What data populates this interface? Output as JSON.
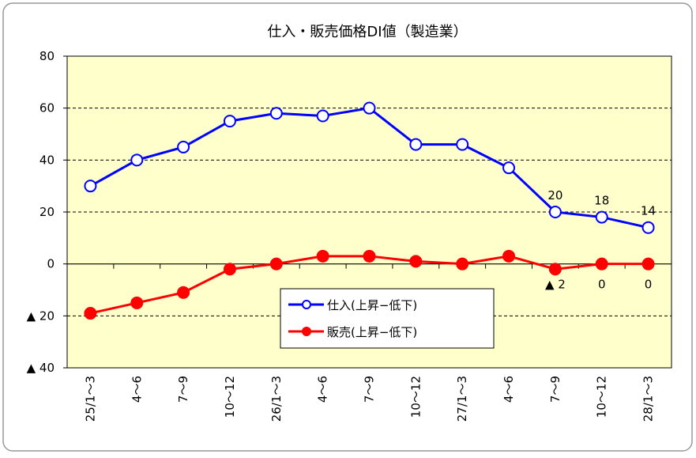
{
  "chart_data": {
    "type": "line",
    "title": "仕入・販売価格DI値（製造業）",
    "categories": [
      "25/1～3",
      "4～6",
      "7～9",
      "10～12",
      "26/1～3",
      "4～6",
      "7～9",
      "10～12",
      "27/1～3",
      "4～6",
      "7～9",
      "10～12",
      "28/1～3"
    ],
    "series": [
      {
        "name": "仕入(上昇−低下)",
        "color": "#0000ff",
        "marker": "open",
        "values": [
          30,
          40,
          45,
          55,
          58,
          57,
          60,
          46,
          46,
          37,
          20,
          18,
          14
        ],
        "value_labels": [
          null,
          null,
          null,
          null,
          null,
          null,
          null,
          null,
          null,
          null,
          "20",
          "18",
          "14"
        ]
      },
      {
        "name": "販売(上昇−低下)",
        "color": "#ff0000",
        "marker": "filled",
        "values": [
          -19,
          -15,
          -11,
          -2,
          0,
          3,
          3,
          1,
          0,
          3,
          -2,
          0,
          0
        ],
        "value_labels": [
          null,
          null,
          null,
          null,
          null,
          null,
          null,
          null,
          null,
          null,
          "▲ 2",
          "0",
          "0"
        ]
      }
    ],
    "ylim": [
      -40,
      80
    ],
    "yticks": [
      {
        "value": -40,
        "label": "▲ 40"
      },
      {
        "value": -20,
        "label": "▲ 20"
      },
      0,
      20,
      40,
      60,
      80
    ],
    "grid": true
  }
}
